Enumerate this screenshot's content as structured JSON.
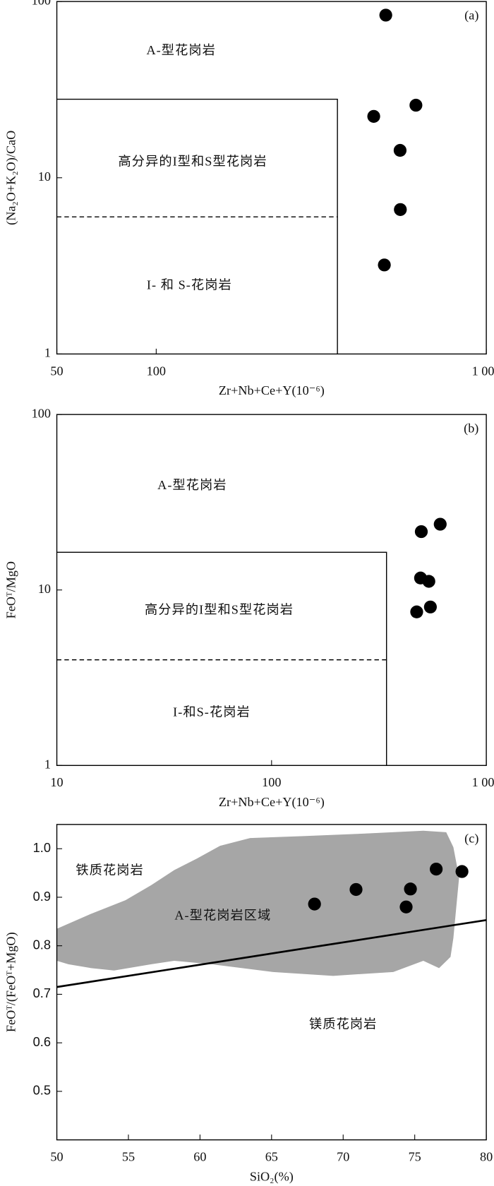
{
  "chart_data": [
    {
      "type": "scatter",
      "panel_label": "(a)",
      "x_label": "Zr+Nb+Ce+Y(10⁻⁶)",
      "y_label": "(Na₂O+K₂O)/CaO",
      "xscale": "log",
      "yscale": "log",
      "xlim": [
        50,
        1000
      ],
      "ylim": [
        1,
        100
      ],
      "xticks": [
        50,
        100,
        {
          "value": 1000,
          "label": "1 000"
        }
      ],
      "yticks": [
        1,
        10,
        100
      ],
      "series": [
        {
          "color": "#000000",
          "x": [
            496,
            456,
            612,
            548,
            549,
            491
          ],
          "values": [
            83.7,
            22.3,
            25.8,
            14.3,
            6.6,
            3.2
          ]
        }
      ],
      "boundaries": [
        {
          "style": "solid",
          "x": [
            50,
            354,
            354
          ],
          "y": [
            27.9,
            27.9,
            1
          ]
        },
        {
          "style": "dashed",
          "x": [
            50,
            354
          ],
          "y": [
            6,
            6
          ]
        }
      ],
      "annotations": [
        {
          "text": "A-型花岗岩",
          "x": 119,
          "y": 52
        },
        {
          "text": "高分异的I型和S型花岗岩",
          "x": 129,
          "y": 12.2
        },
        {
          "text": "I- 和 S-花岗岩",
          "x": 126,
          "y": 2.43
        }
      ]
    },
    {
      "type": "scatter",
      "panel_label": "(b)",
      "x_label": "Zr+Nb+Ce+Y(10⁻⁶)",
      "y_label": "FeOᵀ/MgO",
      "xscale": "log",
      "yscale": "log",
      "xlim": [
        10,
        1000
      ],
      "ylim": [
        1,
        100
      ],
      "xticks": [
        10,
        100,
        {
          "value": 1000,
          "label": "1 000"
        }
      ],
      "yticks": [
        1,
        10,
        100
      ],
      "series": [
        {
          "color": "#000000",
          "x": [
            498,
            610,
            494,
            540,
            474,
            549
          ],
          "values": [
            21.5,
            23.7,
            11.7,
            11.2,
            7.5,
            8.0
          ]
        }
      ],
      "boundaries": [
        {
          "style": "solid",
          "x": [
            10,
            343,
            343
          ],
          "y": [
            16.4,
            16.4,
            1
          ]
        },
        {
          "style": "dashed",
          "x": [
            10,
            343
          ],
          "y": [
            4,
            4
          ]
        }
      ],
      "annotations": [
        {
          "text": "A-型花岗岩",
          "x": 42.7,
          "y": 39
        },
        {
          "text": "高分异的I型和S型花岗岩",
          "x": 57,
          "y": 7.6
        },
        {
          "text": "I-和S-花岗岩",
          "x": 52.6,
          "y": 1.98
        }
      ]
    },
    {
      "type": "scatter",
      "panel_label": "(c)",
      "x_label": "SiO₂(%)",
      "y_label": "FeOᵀ/(FeOᵀ+MgO)",
      "xscale": "linear",
      "yscale": "linear",
      "xlim": [
        50,
        80
      ],
      "ylim": [
        0.4,
        1.05
      ],
      "xticks": [
        50,
        55,
        60,
        65,
        70,
        75,
        80
      ],
      "yticks": [
        0.5,
        0.6,
        0.7,
        0.8,
        0.9,
        {
          "value": 1,
          "label": "1.0"
        }
      ],
      "series": [
        {
          "color": "#000000",
          "x": [
            68.0,
            70.9,
            74.7,
            74.4,
            76.5,
            78.3
          ],
          "values": [
            0.886,
            0.916,
            0.917,
            0.88,
            0.958,
            0.953
          ]
        }
      ],
      "areas": [
        {
          "color": "#a6a6a6",
          "x": [
            50,
            52.4,
            54.8,
            56.6,
            58.2,
            59.8,
            61.4,
            63.5,
            67.2,
            71.4,
            75.6,
            77.2,
            77.7,
            78.1,
            77.9,
            77.7,
            77.5,
            76.7,
            75.6,
            73.5,
            69.3,
            65.1,
            60.8,
            58.2,
            56.6,
            54.0,
            52.4,
            50.8,
            50
          ],
          "y": [
            0.835,
            0.866,
            0.894,
            0.925,
            0.956,
            0.98,
            1.006,
            1.022,
            1.026,
            1.031,
            1.037,
            1.034,
            1.003,
            0.941,
            0.879,
            0.816,
            0.777,
            0.754,
            0.769,
            0.746,
            0.738,
            0.746,
            0.762,
            0.769,
            0.762,
            0.749,
            0.754,
            0.762,
            0.769
          ]
        }
      ],
      "boundaries": [
        {
          "style": "thick",
          "x": [
            50,
            80
          ],
          "y": [
            0.715,
            0.853
          ]
        }
      ],
      "annotations": [
        {
          "text": "铁质花岗岩",
          "x": 53.7,
          "y": 0.953
        },
        {
          "text": "A-型花岗岩区域",
          "x": 61.6,
          "y": 0.86
        },
        {
          "text": "镁质花岗岩",
          "x": 70.0,
          "y": 0.636
        }
      ]
    }
  ]
}
